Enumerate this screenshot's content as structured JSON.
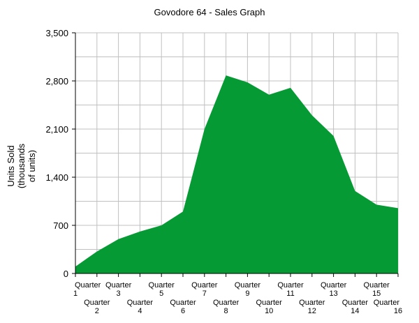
{
  "chart_data": {
    "type": "area",
    "title": "Govodore 64 - Sales Graph",
    "ylabel_lines": [
      "Units Sold",
      "(thousands",
      "of units)"
    ],
    "xlabel": "",
    "categories": [
      "Quarter 1",
      "Quarter 2",
      "Quarter 3",
      "Quarter 4",
      "Quarter 5",
      "Quarter 6",
      "Quarter 7",
      "Quarter 8",
      "Quarter 9",
      "Quarter 10",
      "Quarter 11",
      "Quarter 12",
      "Quarter 13",
      "Quarter 14",
      "Quarter 15",
      "Quarter 16"
    ],
    "y_ticks": [
      "0",
      "700",
      "1,400",
      "2,100",
      "2,800",
      "3,500"
    ],
    "ylim": [
      0,
      3500
    ],
    "series": [
      {
        "values": [
          100,
          320,
          500,
          610,
          700,
          900,
          2100,
          2880,
          2780,
          2600,
          2700,
          2300,
          2000,
          1200,
          1000,
          950
        ]
      }
    ],
    "grid": true,
    "colors": {
      "fill": "#069a35",
      "grid": "#c0c0c0",
      "axis": "#000000"
    }
  }
}
